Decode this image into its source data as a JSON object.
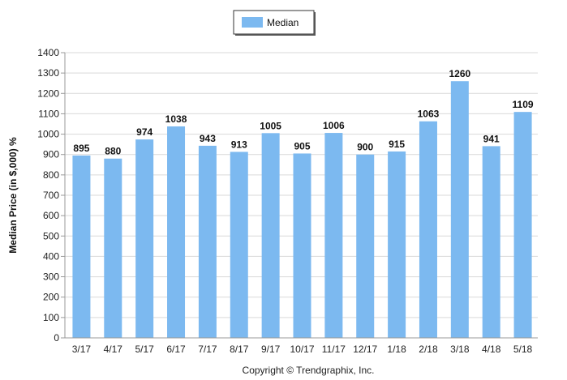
{
  "chart_data": {
    "type": "bar",
    "categories": [
      "3/17",
      "4/17",
      "5/17",
      "6/17",
      "7/17",
      "8/17",
      "9/17",
      "10/17",
      "11/17",
      "12/17",
      "1/18",
      "2/18",
      "3/18",
      "4/18",
      "5/18"
    ],
    "series": [
      {
        "name": "Median",
        "values": [
          895,
          880,
          974,
          1038,
          943,
          913,
          1005,
          905,
          1006,
          900,
          915,
          1063,
          1260,
          941,
          1109
        ]
      }
    ],
    "ylabel": "Median Price (in $,000) %",
    "ylim": [
      0,
      1400
    ],
    "yticks": [
      0,
      100,
      200,
      300,
      400,
      500,
      600,
      700,
      800,
      900,
      1000,
      1100,
      1200,
      1300,
      1400
    ],
    "grid": true,
    "legend_position": "top-center",
    "bar_color": "#7cb9f0"
  },
  "footer": {
    "copyright": "Copyright © Trendgraphix, Inc."
  }
}
